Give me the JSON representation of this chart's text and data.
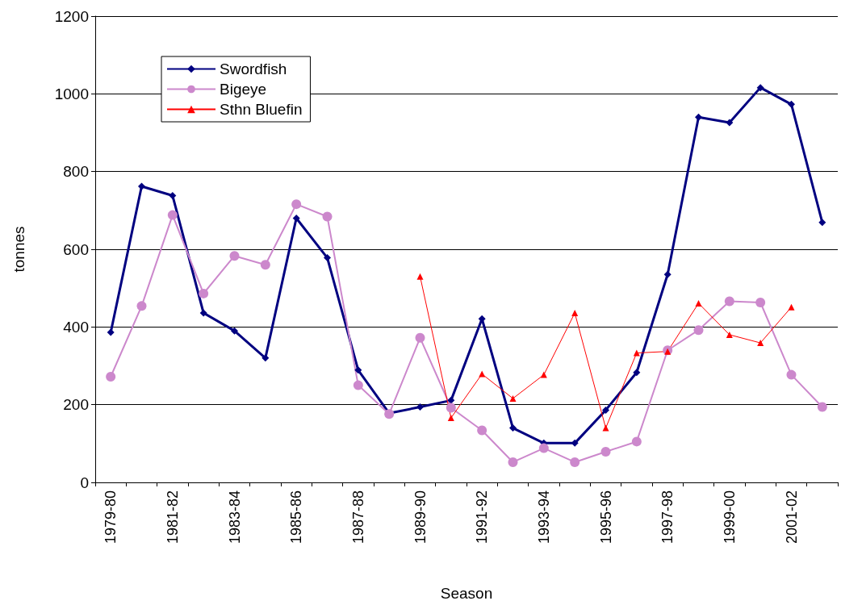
{
  "chart_data": {
    "type": "line",
    "xlabel": "Season",
    "ylabel": "tonnes",
    "categories": [
      "1979-80",
      null,
      "1981-82",
      null,
      "1983-84",
      null,
      "1985-86",
      null,
      "1987-88",
      null,
      "1989-90",
      null,
      "1991-92",
      null,
      "1993-94",
      null,
      "1995-96",
      null,
      "1997-98",
      null,
      "1999-00",
      null,
      "2001-02",
      null
    ],
    "series": [
      {
        "name": "Swordfish",
        "color": "#000080",
        "marker": "diamond",
        "values": [
          386,
          762,
          738,
          436,
          390,
          320,
          680,
          578,
          289,
          178,
          194,
          211,
          421,
          140,
          101,
          101,
          186,
          283,
          535,
          940,
          926,
          1016,
          973,
          669
        ]
      },
      {
        "name": "Bigeye",
        "color": "#cc88cc",
        "marker": "circle",
        "values": [
          272,
          454,
          688,
          486,
          583,
          560,
          716,
          684,
          250,
          176,
          372,
          192,
          134,
          52,
          88,
          52,
          79,
          105,
          340,
          392,
          466,
          463,
          277,
          194
        ]
      },
      {
        "name": "Sthn Bluefin",
        "color": "#ff0000",
        "marker": "triangle",
        "values": [
          null,
          null,
          null,
          null,
          null,
          null,
          null,
          null,
          null,
          null,
          530,
          166,
          279,
          216,
          277,
          436,
          140,
          333,
          337,
          461,
          380,
          359,
          451,
          null
        ]
      }
    ],
    "ylim": [
      0,
      1200
    ],
    "yticks": [
      0,
      200,
      400,
      600,
      800,
      1000,
      1200
    ],
    "grid": "y",
    "legend": "top left"
  }
}
